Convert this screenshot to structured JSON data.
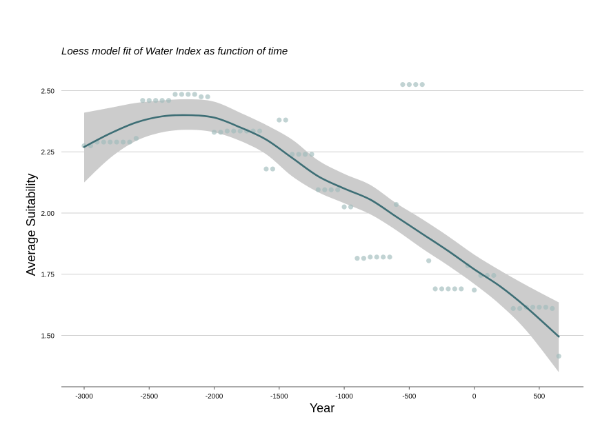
{
  "chart_data": {
    "type": "scatter",
    "title": "Loess model fit of Water Index as function of time",
    "xlabel": "Year",
    "ylabel": "Average Suitability",
    "xlim": [
      -3175,
      840
    ],
    "ylim": [
      1.29,
      2.6
    ],
    "x_ticks": [
      -3000,
      -2500,
      -2000,
      -1500,
      -1000,
      -500,
      0,
      500
    ],
    "y_ticks": [
      1.5,
      1.75,
      2.0,
      2.25,
      2.5
    ],
    "x_tick_labels": [
      "-3000",
      "-2500",
      "-2000",
      "-1500",
      "-1000",
      "-500",
      "0",
      "500"
    ],
    "y_tick_labels": [
      "1.50",
      "1.75",
      "2.00",
      "2.25",
      "2.50"
    ],
    "grid": "horizontal",
    "legend": "none",
    "colors": {
      "points": "#9fbbbb",
      "line": "#3d6e75",
      "band": "#cccccc",
      "grid": "#cfcfcf",
      "axis": "#555555",
      "text": "#000000"
    },
    "points": [
      {
        "x": -3000,
        "y": 2.275
      },
      {
        "x": -2950,
        "y": 2.275
      },
      {
        "x": -2900,
        "y": 2.29
      },
      {
        "x": -2850,
        "y": 2.29
      },
      {
        "x": -2800,
        "y": 2.29
      },
      {
        "x": -2750,
        "y": 2.29
      },
      {
        "x": -2700,
        "y": 2.29
      },
      {
        "x": -2650,
        "y": 2.29
      },
      {
        "x": -2600,
        "y": 2.305
      },
      {
        "x": -2550,
        "y": 2.46
      },
      {
        "x": -2500,
        "y": 2.46
      },
      {
        "x": -2450,
        "y": 2.46
      },
      {
        "x": -2400,
        "y": 2.46
      },
      {
        "x": -2350,
        "y": 2.46
      },
      {
        "x": -2300,
        "y": 2.485
      },
      {
        "x": -2250,
        "y": 2.485
      },
      {
        "x": -2200,
        "y": 2.485
      },
      {
        "x": -2150,
        "y": 2.485
      },
      {
        "x": -2100,
        "y": 2.475
      },
      {
        "x": -2050,
        "y": 2.475
      },
      {
        "x": -2000,
        "y": 2.33
      },
      {
        "x": -1950,
        "y": 2.33
      },
      {
        "x": -1900,
        "y": 2.335
      },
      {
        "x": -1850,
        "y": 2.335
      },
      {
        "x": -1800,
        "y": 2.335
      },
      {
        "x": -1750,
        "y": 2.335
      },
      {
        "x": -1700,
        "y": 2.335
      },
      {
        "x": -1650,
        "y": 2.335
      },
      {
        "x": -1600,
        "y": 2.18
      },
      {
        "x": -1550,
        "y": 2.18
      },
      {
        "x": -1500,
        "y": 2.38
      },
      {
        "x": -1450,
        "y": 2.38
      },
      {
        "x": -1400,
        "y": 2.24
      },
      {
        "x": -1350,
        "y": 2.24
      },
      {
        "x": -1300,
        "y": 2.24
      },
      {
        "x": -1250,
        "y": 2.24
      },
      {
        "x": -1200,
        "y": 2.095
      },
      {
        "x": -1150,
        "y": 2.095
      },
      {
        "x": -1100,
        "y": 2.095
      },
      {
        "x": -1050,
        "y": 2.095
      },
      {
        "x": -1000,
        "y": 2.025
      },
      {
        "x": -950,
        "y": 2.025
      },
      {
        "x": -900,
        "y": 1.815
      },
      {
        "x": -850,
        "y": 1.815
      },
      {
        "x": -800,
        "y": 1.82
      },
      {
        "x": -750,
        "y": 1.82
      },
      {
        "x": -700,
        "y": 1.82
      },
      {
        "x": -650,
        "y": 1.82
      },
      {
        "x": -600,
        "y": 2.035
      },
      {
        "x": -550,
        "y": 2.525
      },
      {
        "x": -500,
        "y": 2.525
      },
      {
        "x": -450,
        "y": 2.525
      },
      {
        "x": -400,
        "y": 2.525
      },
      {
        "x": -350,
        "y": 1.805
      },
      {
        "x": -300,
        "y": 1.69
      },
      {
        "x": -250,
        "y": 1.69
      },
      {
        "x": -200,
        "y": 1.69
      },
      {
        "x": -150,
        "y": 1.69
      },
      {
        "x": -100,
        "y": 1.69
      },
      {
        "x": -50,
        "y": 1.785
      },
      {
        "x": 0,
        "y": 1.685
      },
      {
        "x": 50,
        "y": 1.745
      },
      {
        "x": 100,
        "y": 1.745
      },
      {
        "x": 150,
        "y": 1.745
      },
      {
        "x": 300,
        "y": 1.61
      },
      {
        "x": 350,
        "y": 1.61
      },
      {
        "x": 400,
        "y": 1.615
      },
      {
        "x": 450,
        "y": 1.615
      },
      {
        "x": 500,
        "y": 1.615
      },
      {
        "x": 550,
        "y": 1.615
      },
      {
        "x": 600,
        "y": 1.61
      },
      {
        "x": 650,
        "y": 1.415
      }
    ],
    "fit": {
      "method": "loess",
      "x": [
        -3000,
        -2800,
        -2600,
        -2400,
        -2200,
        -2000,
        -1800,
        -1600,
        -1400,
        -1200,
        -1000,
        -800,
        -600,
        -400,
        -200,
        0,
        200,
        400,
        650
      ],
      "y": [
        2.27,
        2.325,
        2.37,
        2.395,
        2.4,
        2.39,
        2.35,
        2.3,
        2.225,
        2.15,
        2.1,
        2.055,
        1.985,
        1.915,
        1.845,
        1.77,
        1.7,
        1.615,
        1.495
      ],
      "lower": [
        2.125,
        2.225,
        2.295,
        2.33,
        2.34,
        2.33,
        2.295,
        2.24,
        2.15,
        2.085,
        2.04,
        1.995,
        1.93,
        1.855,
        1.785,
        1.71,
        1.625,
        1.52,
        1.35
      ],
      "upper": [
        2.41,
        2.43,
        2.45,
        2.46,
        2.465,
        2.455,
        2.41,
        2.36,
        2.3,
        2.215,
        2.16,
        2.115,
        2.04,
        1.975,
        1.905,
        1.83,
        1.765,
        1.705,
        1.635
      ]
    }
  }
}
